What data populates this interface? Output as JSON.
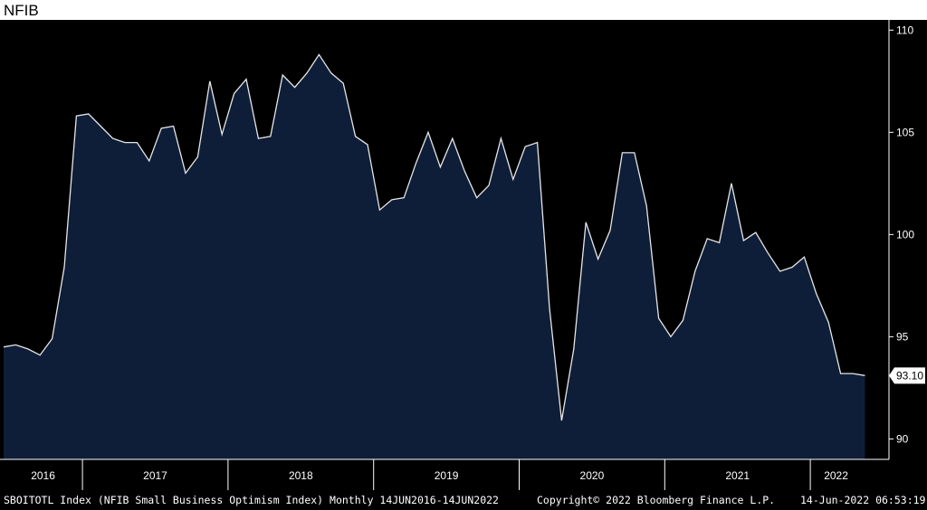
{
  "title": "NFIB",
  "chart_data": {
    "type": "area",
    "x": [
      "2016-06",
      "2016-07",
      "2016-08",
      "2016-09",
      "2016-10",
      "2016-11",
      "2016-12",
      "2017-01",
      "2017-02",
      "2017-03",
      "2017-04",
      "2017-05",
      "2017-06",
      "2017-07",
      "2017-08",
      "2017-09",
      "2017-10",
      "2017-11",
      "2017-12",
      "2018-01",
      "2018-02",
      "2018-03",
      "2018-04",
      "2018-05",
      "2018-06",
      "2018-07",
      "2018-08",
      "2018-09",
      "2018-10",
      "2018-11",
      "2018-12",
      "2019-01",
      "2019-02",
      "2019-03",
      "2019-04",
      "2019-05",
      "2019-06",
      "2019-07",
      "2019-08",
      "2019-09",
      "2019-10",
      "2019-11",
      "2019-12",
      "2020-01",
      "2020-02",
      "2020-03",
      "2020-04",
      "2020-05",
      "2020-06",
      "2020-07",
      "2020-08",
      "2020-09",
      "2020-10",
      "2020-11",
      "2020-12",
      "2021-01",
      "2021-02",
      "2021-03",
      "2021-04",
      "2021-05",
      "2021-06",
      "2021-07",
      "2021-08",
      "2021-09",
      "2021-10",
      "2021-11",
      "2021-12",
      "2022-01",
      "2022-02",
      "2022-03",
      "2022-04",
      "2022-05"
    ],
    "values": [
      94.5,
      94.6,
      94.4,
      94.1,
      94.9,
      98.4,
      105.8,
      105.9,
      105.3,
      104.7,
      104.5,
      104.5,
      103.6,
      105.2,
      105.3,
      103.0,
      103.8,
      107.5,
      104.9,
      106.9,
      107.6,
      104.7,
      104.8,
      107.8,
      107.2,
      107.9,
      108.8,
      107.9,
      107.4,
      104.8,
      104.4,
      101.2,
      101.7,
      101.8,
      103.5,
      105.0,
      103.3,
      104.7,
      103.1,
      101.8,
      102.4,
      104.7,
      102.7,
      104.3,
      104.5,
      96.4,
      90.9,
      94.4,
      100.6,
      98.8,
      100.2,
      104.0,
      104.0,
      101.4,
      95.9,
      95.0,
      95.8,
      98.2,
      99.8,
      99.6,
      102.5,
      99.7,
      100.1,
      99.1,
      98.2,
      98.4,
      98.9,
      97.1,
      95.7,
      93.2,
      93.2,
      93.1
    ],
    "ylim": [
      89,
      110.5
    ],
    "yticks": [
      "110",
      "105",
      "100",
      "95",
      "90"
    ],
    "ytick_values": [
      110,
      105,
      100,
      95,
      90
    ],
    "year_labels": [
      "2016",
      "2017",
      "2018",
      "2019",
      "2020",
      "2021",
      "2022"
    ],
    "last_value_label": "93.10",
    "colors": {
      "background": "#000000",
      "fill": "#0f1e38",
      "line": "#e6e6e6",
      "axis": "#ffffff",
      "text": "#ffffff"
    }
  },
  "footer": {
    "left": "SBOITOTL Index (NFIB Small Business Optimism Index)  Monthly 14JUN2016-14JUN2022",
    "center": "Copyright© 2022 Bloomberg Finance L.P.",
    "right": "14-Jun-2022 06:53:19"
  }
}
